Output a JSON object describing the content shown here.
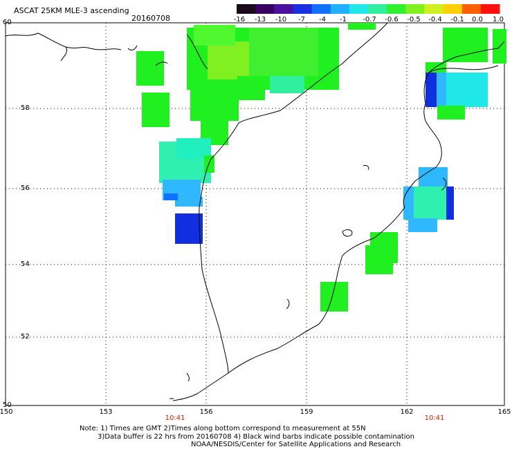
{
  "header": {
    "title": "ASCAT 25KM MLE-3 ascending",
    "date": "20160708"
  },
  "colorbar": {
    "labels": [
      "-16",
      "-13",
      "-10",
      "-7",
      "-4",
      "-1",
      "-0.7",
      "-0.6",
      "-0.5",
      "-0.4",
      "-0.1",
      "0.0",
      "1.0"
    ],
    "colors": [
      "#1a0a1a",
      "#3a0060",
      "#4a10a0",
      "#1a30e0",
      "#1070ff",
      "#20b0ff",
      "#20e8e8",
      "#30f0a0",
      "#30f030",
      "#80f020",
      "#d0f020",
      "#ffd000",
      "#ff6000",
      "#ff1010"
    ]
  },
  "axes": {
    "lat_labels": [
      "60",
      "58",
      "56",
      "54",
      "52",
      "50"
    ],
    "lon_labels": [
      "150",
      "153",
      "156",
      "159",
      "162",
      "165"
    ]
  },
  "times": [
    "10:41",
    "10:41"
  ],
  "notes": {
    "line1": "Note: 1) Times are GMT 2)Times along bottom correspond to measurement at 55N",
    "line2": "3)Data buffer is 22 hrs from 20160708 4) Black wind barbs indicate possible contamination",
    "line3": "NOAA/NESDIS/Center for Satellite Applications and Research"
  },
  "colors": {
    "green": "#20f020",
    "bright_green": "#50f830",
    "yellow_green": "#80f020",
    "cyan": "#20e8e8",
    "cyan_green": "#30f0b0",
    "light_blue": "#30b8ff",
    "blue": "#1040f0",
    "deep_blue": "#1020d0"
  }
}
